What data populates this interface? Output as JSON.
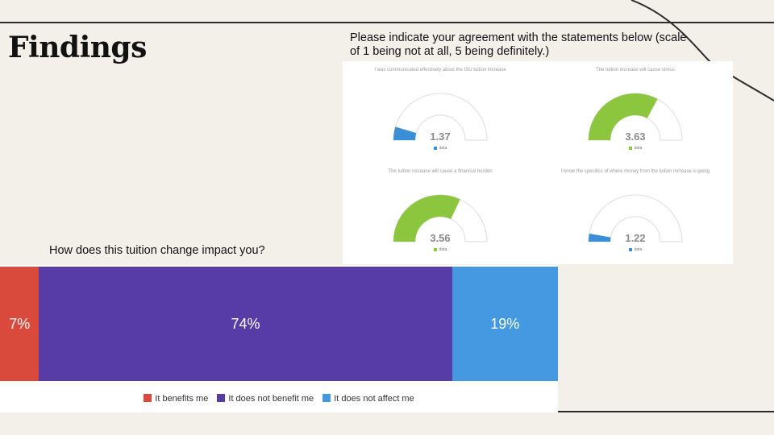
{
  "slide": {
    "title": "Findings",
    "gauge_caption": "Please indicate your agreement with the statements below (scale of 1 being not at all, 5 being definitely.)",
    "bar_caption": "How does this tuition change impact you?"
  },
  "chart_data": [
    {
      "type": "gauge",
      "title": "I was communicated effectively about the ISU tuition increase",
      "value": 1.37,
      "value_label": "1.37",
      "range": [
        1,
        5
      ],
      "legend": "data",
      "color": "#3a8fd6"
    },
    {
      "type": "gauge",
      "title": "The tuition increase will cause stress",
      "value": 3.63,
      "value_label": "3.63",
      "range": [
        1,
        5
      ],
      "legend": "data",
      "color": "#8cc63f"
    },
    {
      "type": "gauge",
      "title": "The tuition increase will cause a financial burden",
      "value": 3.56,
      "value_label": "3.56",
      "range": [
        1,
        5
      ],
      "legend": "data",
      "color": "#8cc63f"
    },
    {
      "type": "gauge",
      "title": "I know the specifics of where money from the tuition increase is going",
      "value": 1.22,
      "value_label": "1.22",
      "range": [
        1,
        5
      ],
      "legend": "data",
      "color": "#3a8fd6"
    },
    {
      "type": "stacked-bar",
      "title": "How does this tuition change impact you?",
      "orientation": "horizontal",
      "series": [
        {
          "name": "It benefits me",
          "value": 7,
          "label": "7%",
          "color": "#d94a3d"
        },
        {
          "name": "It does not benefit me",
          "value": 74,
          "label": "74%",
          "color": "#573ba6"
        },
        {
          "name": "It does not affect me",
          "value": 19,
          "label": "19%",
          "color": "#4499e0"
        }
      ]
    }
  ]
}
